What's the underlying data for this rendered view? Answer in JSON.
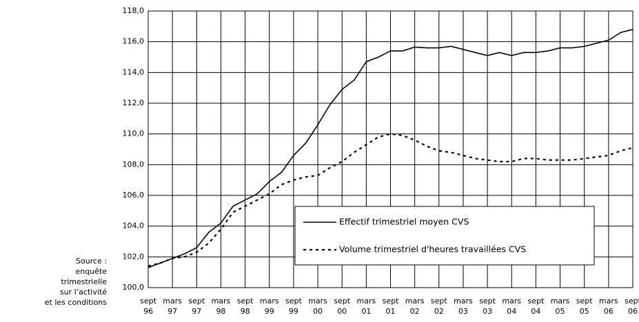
{
  "chart_data": {
    "type": "line",
    "categories": [
      "sept 96",
      null,
      "mars 97",
      null,
      "sept 97",
      null,
      "mars 98",
      null,
      "sept 98",
      null,
      "mars 99",
      null,
      "sept 99",
      null,
      "mars 00",
      null,
      "sept 00",
      null,
      "mars 01",
      null,
      "sept 01",
      null,
      "mars 02",
      null,
      "sept 02",
      null,
      "mars 03",
      null,
      "sept 03",
      null,
      "mars 04",
      null,
      "sept 04",
      null,
      "mars 05",
      null,
      "sept 05",
      null,
      "mars 06",
      null,
      "sept 06"
    ],
    "series": [
      {
        "name": "Effectif trimestriel moyen CVS",
        "color": "#000000",
        "dash": false,
        "values": [
          101.3,
          101.6,
          101.9,
          102.2,
          102.6,
          103.6,
          104.2,
          105.3,
          105.7,
          106.1,
          106.9,
          107.5,
          108.6,
          109.4,
          110.6,
          111.9,
          112.9,
          113.5,
          114.7,
          115.0,
          115.4,
          115.4,
          115.65,
          115.6,
          115.6,
          115.7,
          115.5,
          115.3,
          115.1,
          115.3,
          115.1,
          115.3,
          115.3,
          115.4,
          115.6,
          115.6,
          115.7,
          115.9,
          116.1,
          116.6,
          116.8
        ]
      },
      {
        "name": "Volume trimestriel d'heures travaillées CVS",
        "color": "#000000",
        "dash": true,
        "values": [
          101.4,
          101.6,
          101.9,
          102.0,
          102.3,
          102.9,
          103.8,
          104.9,
          105.3,
          105.7,
          106.1,
          106.7,
          107.0,
          107.2,
          107.3,
          107.8,
          108.2,
          108.8,
          109.3,
          109.8,
          110.0,
          109.9,
          109.6,
          109.2,
          108.9,
          108.8,
          108.6,
          108.4,
          108.3,
          108.2,
          108.2,
          108.4,
          108.4,
          108.3,
          108.3,
          108.3,
          108.4,
          108.5,
          108.6,
          108.9,
          109.1
        ]
      }
    ],
    "ylim": [
      100,
      118
    ],
    "yticks": [
      {
        "value": 100,
        "label": "100,0"
      },
      {
        "value": 102,
        "label": "102,0"
      },
      {
        "value": 104,
        "label": "104,0"
      },
      {
        "value": 106,
        "label": "106,0"
      },
      {
        "value": 108,
        "label": "108,0"
      },
      {
        "value": 110,
        "label": "110,0"
      },
      {
        "value": 112,
        "label": "112,0"
      },
      {
        "value": 114,
        "label": "114,0"
      },
      {
        "value": 116,
        "label": "116,0"
      },
      {
        "value": 118,
        "label": "118,0"
      }
    ],
    "grid": true,
    "source": [
      "Source :",
      "enquête",
      "trimestrielle",
      "sur l’activité",
      "et les conditions"
    ]
  }
}
